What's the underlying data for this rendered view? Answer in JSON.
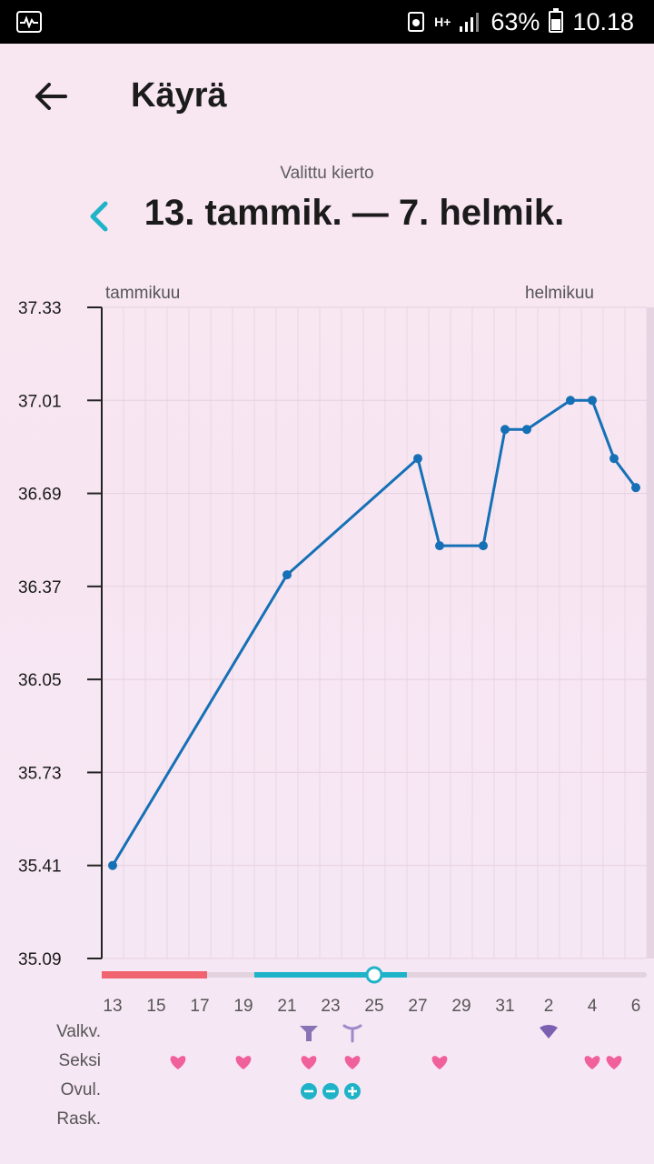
{
  "status_bar": {
    "network": "H+",
    "battery_percent": "63%",
    "time": "10.18"
  },
  "header": {
    "title": "Käyrä"
  },
  "cycle": {
    "caption": "Valittu kierto",
    "range": "13. tammik. — 7. helmik."
  },
  "chart_data": {
    "type": "line",
    "month_labels": [
      "tammikuu",
      "helmikuu"
    ],
    "yticks": [
      "37.33",
      "37.01",
      "36.69",
      "36.37",
      "36.05",
      "35.73",
      "35.41",
      "35.09"
    ],
    "ylim": [
      35.09,
      37.33
    ],
    "xticks": [
      "13",
      "15",
      "17",
      "19",
      "21",
      "23",
      "25",
      "27",
      "29",
      "31",
      "2",
      "4",
      "6"
    ],
    "days": [
      "2025-01-13",
      "2025-01-14",
      "2025-01-15",
      "2025-01-16",
      "2025-01-17",
      "2025-01-18",
      "2025-01-19",
      "2025-01-20",
      "2025-01-21",
      "2025-01-22",
      "2025-01-23",
      "2025-01-24",
      "2025-01-25",
      "2025-01-26",
      "2025-01-27",
      "2025-01-28",
      "2025-01-29",
      "2025-01-30",
      "2025-01-31",
      "2025-02-01",
      "2025-02-02",
      "2025-02-03",
      "2025-02-04",
      "2025-02-05",
      "2025-02-06",
      "2025-02-07"
    ],
    "series": [
      {
        "points": [
          {
            "x": "2025-01-13",
            "y": 35.41
          },
          {
            "x": "2025-01-21",
            "y": 36.41
          },
          {
            "x": "2025-01-27",
            "y": 36.81
          },
          {
            "x": "2025-01-28",
            "y": 36.51
          },
          {
            "x": "2025-01-30",
            "y": 36.51
          },
          {
            "x": "2025-01-31",
            "y": 36.91
          },
          {
            "x": "2025-02-01",
            "y": 36.91
          },
          {
            "x": "2025-02-03",
            "y": 37.01
          },
          {
            "x": "2025-02-04",
            "y": 37.01
          },
          {
            "x": "2025-02-05",
            "y": 36.81
          },
          {
            "x": "2025-02-06",
            "y": 36.71
          }
        ]
      }
    ],
    "period_bar": {
      "from": "2025-01-13",
      "to": "2025-01-17"
    },
    "fertile_bar": {
      "from": "2025-01-20",
      "to": "2025-01-26"
    },
    "ovulation_marker": "2025-01-25",
    "highlighted_day": "2025-02-07",
    "colors": {
      "line": "#1670b5",
      "period": "#f06470",
      "fertile": "#1fb3c8",
      "heart": "#f0609a",
      "drop": "#7b5fb0"
    }
  },
  "rows": {
    "labels": [
      "Valkv.",
      "Seksi",
      "Ovul.",
      "Rask."
    ],
    "valkv": [
      {
        "day": "2025-01-22",
        "icon": "eggwhite-icon"
      },
      {
        "day": "2025-01-24",
        "icon": "sticky-icon"
      },
      {
        "day": "2025-02-02",
        "icon": "creamy-icon"
      }
    ],
    "seksi": [
      "2025-01-16",
      "2025-01-19",
      "2025-01-22",
      "2025-01-24",
      "2025-01-28",
      "2025-02-04",
      "2025-02-05"
    ],
    "ovul": [
      {
        "day": "2025-01-22",
        "result": "negative"
      },
      {
        "day": "2025-01-23",
        "result": "negative"
      },
      {
        "day": "2025-01-24",
        "result": "positive"
      }
    ],
    "rask": []
  }
}
